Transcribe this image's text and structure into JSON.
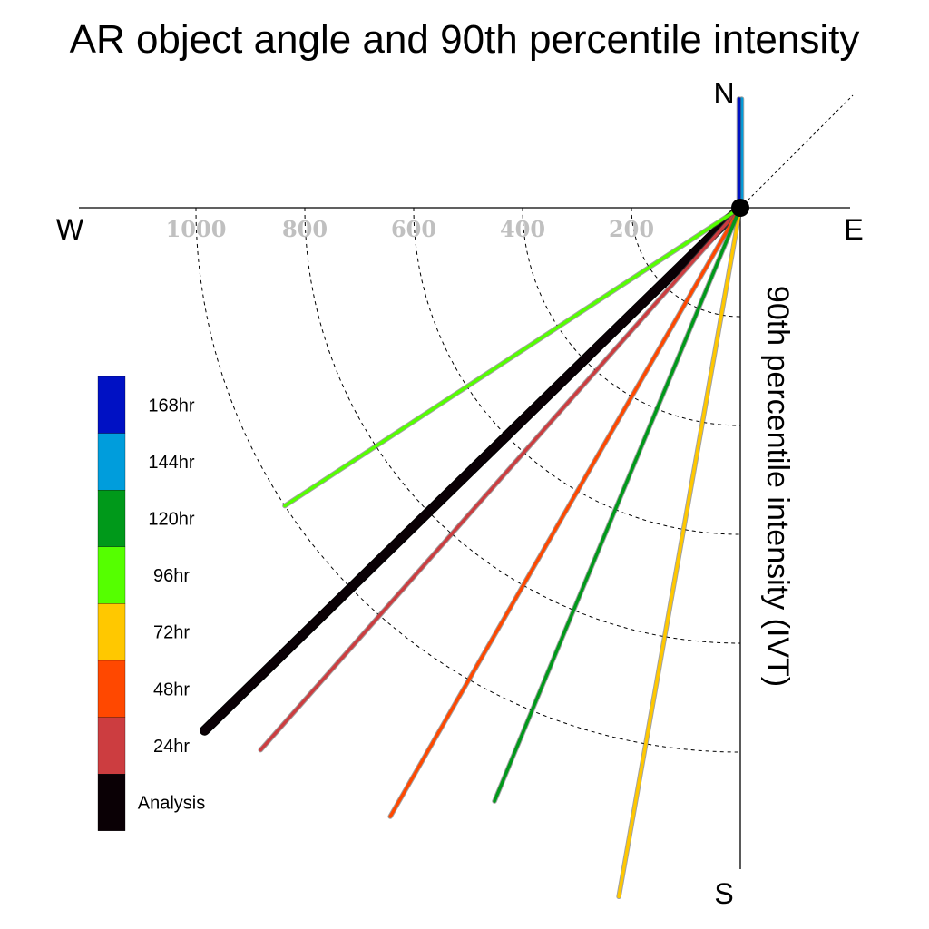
{
  "title": "AR object angle and 90th percentile intensity",
  "compass": {
    "north": "N",
    "south": "S",
    "east": "E",
    "west": "W"
  },
  "chart_data": {
    "type": "polar-vector",
    "title": "AR object angle and 90th percentile intensity",
    "ylabel": "90th percentile intensity (IVT)",
    "radial_ticks": [
      200,
      400,
      600,
      800,
      1000
    ],
    "angle_convention": "degrees counter-clockwise from east",
    "vectors": [
      {
        "name": "Analysis",
        "color": "#0a0005",
        "angle_deg": -135.7,
        "magnitude": 1375
      },
      {
        "name": "24hr",
        "color": "#cc3d40",
        "angle_deg": -131.5,
        "magnitude": 1330
      },
      {
        "name": "48hr",
        "color": "#ff4800",
        "angle_deg": -119.9,
        "magnitude": 1290
      },
      {
        "name": "72hr",
        "color": "#ffc800",
        "angle_deg": -100.0,
        "magnitude": 1285
      },
      {
        "name": "96hr",
        "color": "#55ff00",
        "angle_deg": -146.8,
        "magnitude": 1000
      },
      {
        "name": "120hr",
        "color": "#00991a",
        "angle_deg": -112.5,
        "magnitude": 1180
      },
      {
        "name": "144hr",
        "color": "#009ddc",
        "angle_deg": 90.0,
        "magnitude": 200
      },
      {
        "name": "168hr",
        "color": "#0011c4",
        "angle_deg": 90.0,
        "magnitude": 200
      }
    ],
    "legend": [
      "168hr",
      "144hr",
      "120hr",
      "96hr",
      "72hr",
      "48hr",
      "24hr",
      "Analysis"
    ],
    "legend_colors": [
      "#0011c4",
      "#009ddc",
      "#00991a",
      "#55ff00",
      "#ffc800",
      "#ff4800",
      "#cc3d40",
      "#0a0005"
    ],
    "legend_position": "left"
  }
}
